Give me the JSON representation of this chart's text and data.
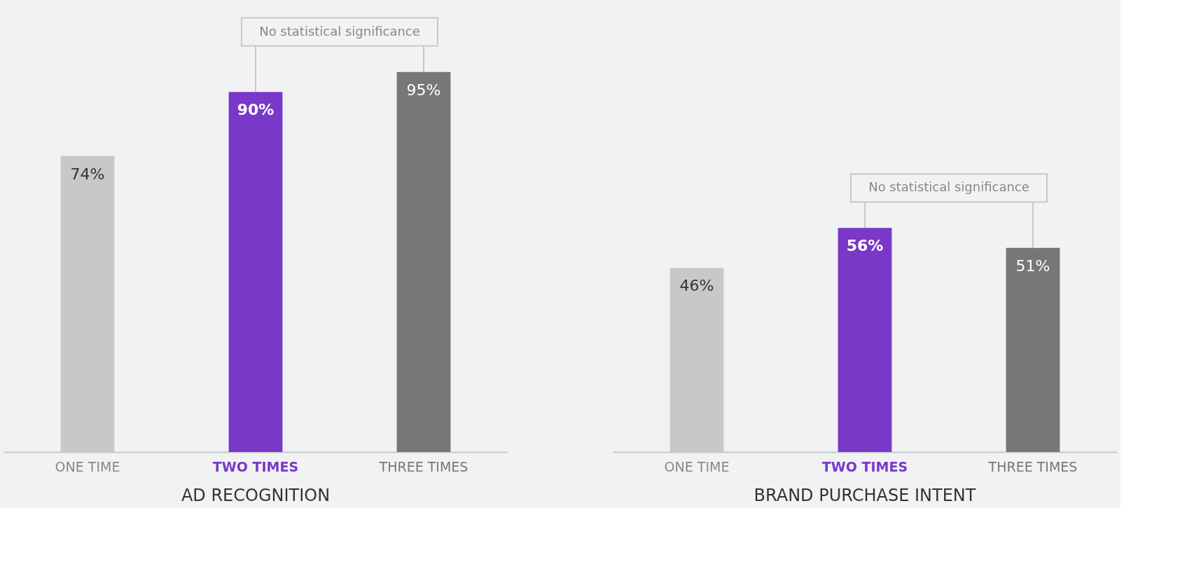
{
  "chart_data": [
    {
      "type": "bar",
      "title": "AD RECOGNITION",
      "categories": [
        "ONE TIME",
        "TWO TIMES",
        "THREE TIMES"
      ],
      "values": [
        74,
        90,
        95
      ],
      "colors": [
        "#c8c8c8",
        "#7a38c9",
        "#777777"
      ],
      "value_labels": [
        "74%",
        "90%",
        "95%"
      ],
      "annotations": [
        "No statistical significance"
      ]
    },
    {
      "type": "bar",
      "title": "BRAND PURCHASE INTENT",
      "categories": [
        "ONE TIME",
        "TWO TIMES",
        "THREE TIMES"
      ],
      "values": [
        46,
        56,
        51
      ],
      "colors": [
        "#c8c8c8",
        "#7a38c9",
        "#777777"
      ],
      "value_labels": [
        "46%",
        "56%",
        "51%"
      ],
      "annotations": [
        "No statistical significance"
      ]
    }
  ]
}
